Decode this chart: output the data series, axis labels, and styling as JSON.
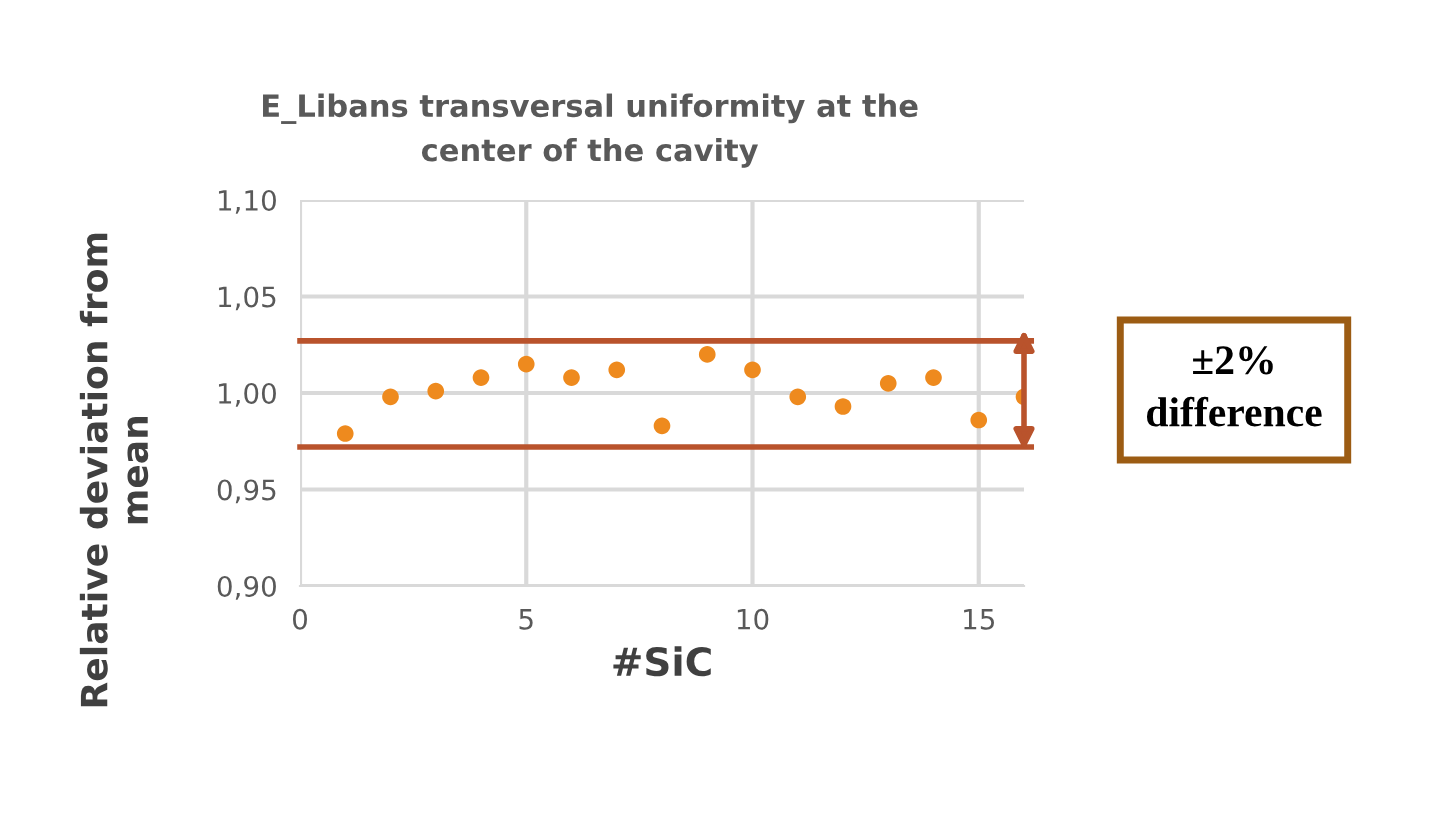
{
  "chart_data": {
    "type": "scatter",
    "title": "E_Libans transversal uniformity at the\ncenter of the cavity",
    "xlabel": "#SiC",
    "ylabel": "Relative deviation from\nmean",
    "x": [
      1,
      2,
      3,
      4,
      5,
      6,
      7,
      8,
      9,
      10,
      11,
      12,
      13,
      14,
      15,
      16
    ],
    "series": [
      {
        "color": "#ee8a1e",
        "values": [
          0.979,
          0.998,
          1.001,
          1.008,
          1.015,
          1.008,
          1.012,
          0.983,
          1.02,
          1.012,
          0.998,
          0.993,
          1.005,
          1.008,
          0.986,
          0.998
        ]
      }
    ],
    "xlim": [
      0,
      16
    ],
    "xticks": [
      0,
      5,
      10,
      15
    ],
    "ylim": [
      0.9,
      1.1
    ],
    "yticks": [
      {
        "value": 0.9,
        "label": "0,90"
      },
      {
        "value": 0.95,
        "label": "0,95"
      },
      {
        "value": 1.0,
        "label": "1,00"
      },
      {
        "value": 1.05,
        "label": "1,05"
      },
      {
        "value": 1.1,
        "label": "1,10"
      }
    ],
    "grid": true,
    "marker": "circle",
    "ref_lines": [
      {
        "axis": "y",
        "value": 1.027,
        "color": "#b9532c"
      },
      {
        "axis": "y",
        "value": 0.972,
        "color": "#b9532c"
      }
    ],
    "annotations": [
      "±2%\ndifference"
    ]
  }
}
